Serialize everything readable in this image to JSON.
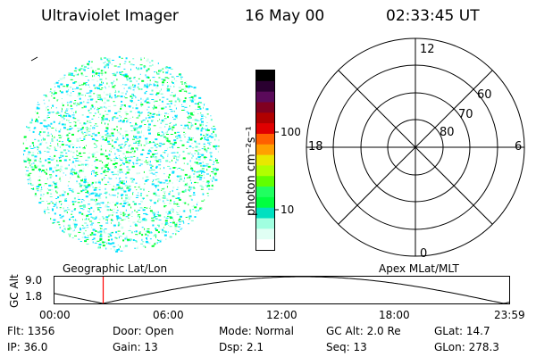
{
  "header": {
    "title": "Ultraviolet Imager",
    "date": "16 May 00",
    "time": "02:33:45 UT"
  },
  "image": {
    "colors": [
      "#00e0ff",
      "#00ff33",
      "#ccffee",
      "#66ffcc"
    ]
  },
  "colorbar": {
    "unit_label": "photon cm⁻²s⁻¹",
    "ticks": [
      "100",
      "10"
    ],
    "colors": [
      "#000000",
      "#2a0030",
      "#5a0a5a",
      "#800020",
      "#b00000",
      "#e00000",
      "#ff6000",
      "#ffa000",
      "#e8e800",
      "#b0ff00",
      "#60ff00",
      "#20ff60",
      "#00ff40",
      "#00e0c0",
      "#a0ffe0",
      "#e0fff4",
      "#ffffff"
    ]
  },
  "polar": {
    "mlt_labels": {
      "top": "12",
      "bottom": "0",
      "left": "18",
      "right": "6"
    },
    "lat_labels": [
      "60",
      "70",
      "80"
    ]
  },
  "timeline": {
    "left_label": "Geographic Lat/Lon",
    "right_label": "Apex MLat/MLT",
    "axis_label": "GC Alt",
    "y_ticks": [
      "9.0",
      "1.8"
    ],
    "x_ticks": [
      "00:00",
      "06:00",
      "12:00",
      "18:00",
      "23:59"
    ],
    "marker_time_hours": 2.5625,
    "marker_color": "#ff0000"
  },
  "status": {
    "flt": "Flt: 1356",
    "door": "Door: Open",
    "mode": "Mode: Normal",
    "gc_alt": "GC Alt: 2.0 Re",
    "glat": "GLat:  14.7",
    "ip": "IP: 36.0",
    "gain": "Gain: 13",
    "dsp": "Dsp:    2.1",
    "seq": "Seq: 13",
    "glon": "GLon: 278.3"
  }
}
